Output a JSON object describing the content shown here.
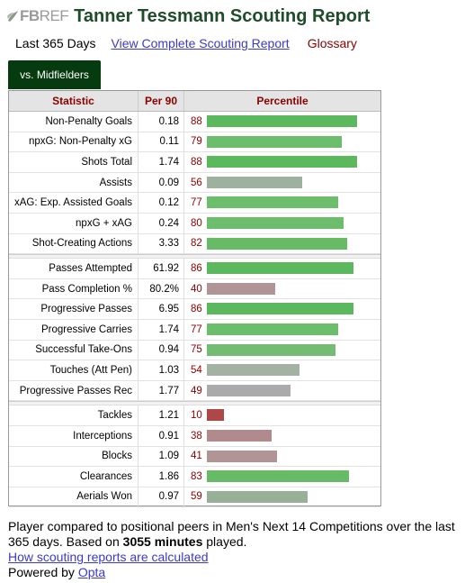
{
  "header": {
    "logo_fb": "FB",
    "logo_ref": "REF",
    "title": "Tanner Tessmann Scouting Report"
  },
  "subnav": {
    "period": "Last 365 Days",
    "complete_link": "View Complete Scouting Report",
    "glossary": "Glossary"
  },
  "tab": {
    "label": "vs. Midfielders"
  },
  "table": {
    "headers": {
      "stat": "Statistic",
      "per90": "Per 90",
      "pct": "Percentile"
    },
    "groups": [
      [
        {
          "stat": "Non-Penalty Goals",
          "per90": "0.18",
          "pct": 88,
          "color": "#5cb85c"
        },
        {
          "stat": "npxG: Non-Penalty xG",
          "per90": "0.11",
          "pct": 79,
          "color": "#6cbd6c"
        },
        {
          "stat": "Shots Total",
          "per90": "1.74",
          "pct": 88,
          "color": "#5cb85c"
        },
        {
          "stat": "Assists",
          "per90": "0.09",
          "pct": 56,
          "color": "#9eb09e"
        },
        {
          "stat": "xAG: Exp. Assisted Goals",
          "per90": "0.12",
          "pct": 77,
          "color": "#6cbd6c"
        },
        {
          "stat": "npxG + xAG",
          "per90": "0.24",
          "pct": 80,
          "color": "#6cbd6c"
        },
        {
          "stat": "Shot-Creating Actions",
          "per90": "3.33",
          "pct": 82,
          "color": "#67bb67"
        }
      ],
      [
        {
          "stat": "Passes Attempted",
          "per90": "61.92",
          "pct": 86,
          "color": "#5cb85c"
        },
        {
          "stat": "Pass Completion %",
          "per90": "80.2%",
          "pct": 40,
          "color": "#b09496"
        },
        {
          "stat": "Progressive Passes",
          "per90": "6.95",
          "pct": 86,
          "color": "#5cb85c"
        },
        {
          "stat": "Progressive Carries",
          "per90": "1.74",
          "pct": 77,
          "color": "#6cbd6c"
        },
        {
          "stat": "Successful Take-Ons",
          "per90": "0.94",
          "pct": 75,
          "color": "#72bd72"
        },
        {
          "stat": "Touches (Att Pen)",
          "per90": "1.03",
          "pct": 54,
          "color": "#a4b2a4"
        },
        {
          "stat": "Progressive Passes Rec",
          "per90": "1.77",
          "pct": 49,
          "color": "#aaaaaa"
        }
      ],
      [
        {
          "stat": "Tackles",
          "per90": "1.21",
          "pct": 10,
          "color": "#b04747"
        },
        {
          "stat": "Interceptions",
          "per90": "0.91",
          "pct": 38,
          "color": "#b08a8c"
        },
        {
          "stat": "Blocks",
          "per90": "1.09",
          "pct": 41,
          "color": "#b09496"
        },
        {
          "stat": "Clearances",
          "per90": "1.86",
          "pct": 83,
          "color": "#67bb67"
        },
        {
          "stat": "Aerials Won",
          "per90": "0.97",
          "pct": 59,
          "color": "#98b098"
        }
      ]
    ]
  },
  "footer": {
    "text_before": "Player compared to positional peers in Men's Next 14 Competitions over the last 365 days. Based on ",
    "minutes": "3055 minutes",
    "text_after": " played.",
    "how_link": "How scouting reports are calculated",
    "powered_prefix": "Powered by ",
    "powered_link": "Opta"
  }
}
